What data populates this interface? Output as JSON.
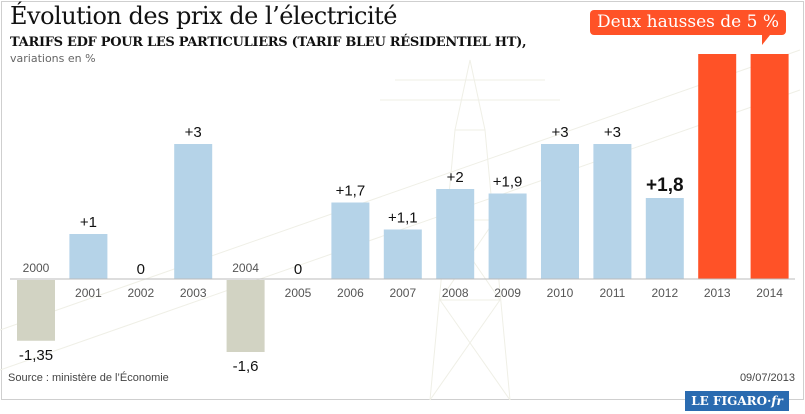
{
  "title": "Évolution des prix de l’électricité",
  "subtitle": "TARIFS EDF POUR LES PARTICULIERS (TARIF BLEU RÉSIDENTIEL HT),",
  "unit_note": "variations en %",
  "callout": "Deux hausses de 5 %",
  "source": "Source : ministère de l’Économie",
  "date": "09/07/2013",
  "logo": "LE FIGARO·fr",
  "colors": {
    "positive": "#b5d3e8",
    "negative": "#d2d3c3",
    "highlight": "#ff5227"
  },
  "chart_data": {
    "type": "bar",
    "categories": [
      "2000",
      "2001",
      "2002",
      "2003",
      "2004",
      "2005",
      "2006",
      "2007",
      "2008",
      "2009",
      "2010",
      "2011",
      "2012",
      "2013",
      "2014"
    ],
    "values": [
      -1.35,
      1,
      0,
      3,
      -1.6,
      0,
      1.7,
      1.1,
      2,
      1.9,
      3,
      3,
      1.8,
      5,
      5
    ],
    "labels": [
      "-1,35",
      "+1",
      "0",
      "+3",
      "-1,6",
      "0",
      "+1,7",
      "+1,1",
      "+2",
      "+1,9",
      "+3",
      "+3",
      "+1,8",
      "",
      ""
    ],
    "highlighted": [
      "2013",
      "2014"
    ],
    "grid": false,
    "legend": "none"
  }
}
